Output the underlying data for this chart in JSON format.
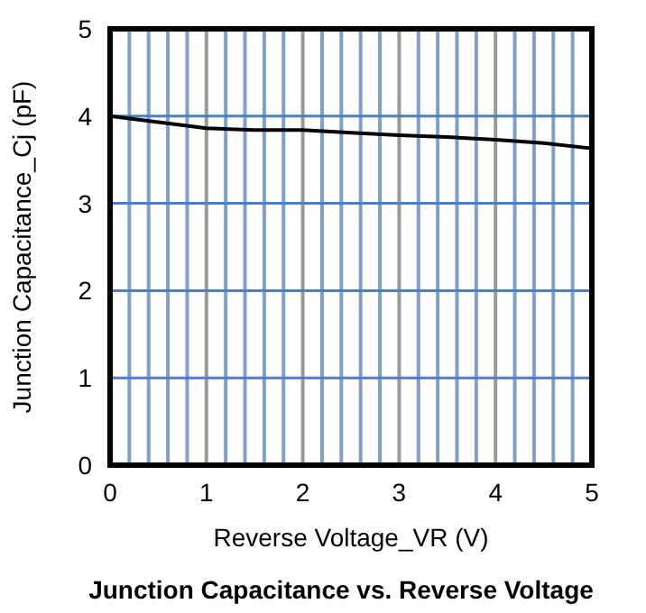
{
  "chart_data": {
    "type": "line",
    "title": "Junction Capacitance vs. Reverse Voltage",
    "xlabel": "Reverse Voltage_VR (V)",
    "ylabel": "Junction Capacitance_Cj (pF)",
    "x": [
      0,
      0.5,
      1,
      1.5,
      2,
      2.5,
      3,
      3.5,
      4,
      4.5,
      5
    ],
    "series": [
      {
        "color": "#000000",
        "values": [
          4.0,
          3.93,
          3.86,
          3.84,
          3.84,
          3.81,
          3.78,
          3.76,
          3.73,
          3.69,
          3.63
        ]
      }
    ],
    "xlim": [
      0,
      5
    ],
    "ylim": [
      0,
      5
    ],
    "xticks": [
      0,
      {
        "value": 0.2,
        "label": null
      },
      {
        "value": 0.4,
        "label": null
      },
      {
        "value": 0.6,
        "label": null
      },
      {
        "value": 0.8,
        "label": null
      },
      1,
      {
        "value": 1.2,
        "label": null
      },
      {
        "value": 1.4,
        "label": null
      },
      {
        "value": 1.6,
        "label": null
      },
      {
        "value": 1.8,
        "label": null
      },
      2,
      {
        "value": 2.2,
        "label": null
      },
      {
        "value": 2.4,
        "label": null
      },
      {
        "value": 2.6,
        "label": null
      },
      {
        "value": 2.8,
        "label": null
      },
      3,
      {
        "value": 3.2,
        "label": null
      },
      {
        "value": 3.4,
        "label": null
      },
      {
        "value": 3.6,
        "label": null
      },
      {
        "value": 3.8,
        "label": null
      },
      4,
      {
        "value": 4.2,
        "label": null
      },
      {
        "value": 4.4,
        "label": null
      },
      {
        "value": 4.6,
        "label": null
      },
      {
        "value": 4.8,
        "label": null
      },
      5
    ],
    "yticks": [
      0,
      1,
      2,
      3,
      4,
      5
    ],
    "grid": true,
    "marker": "none",
    "line_style": "solid"
  }
}
